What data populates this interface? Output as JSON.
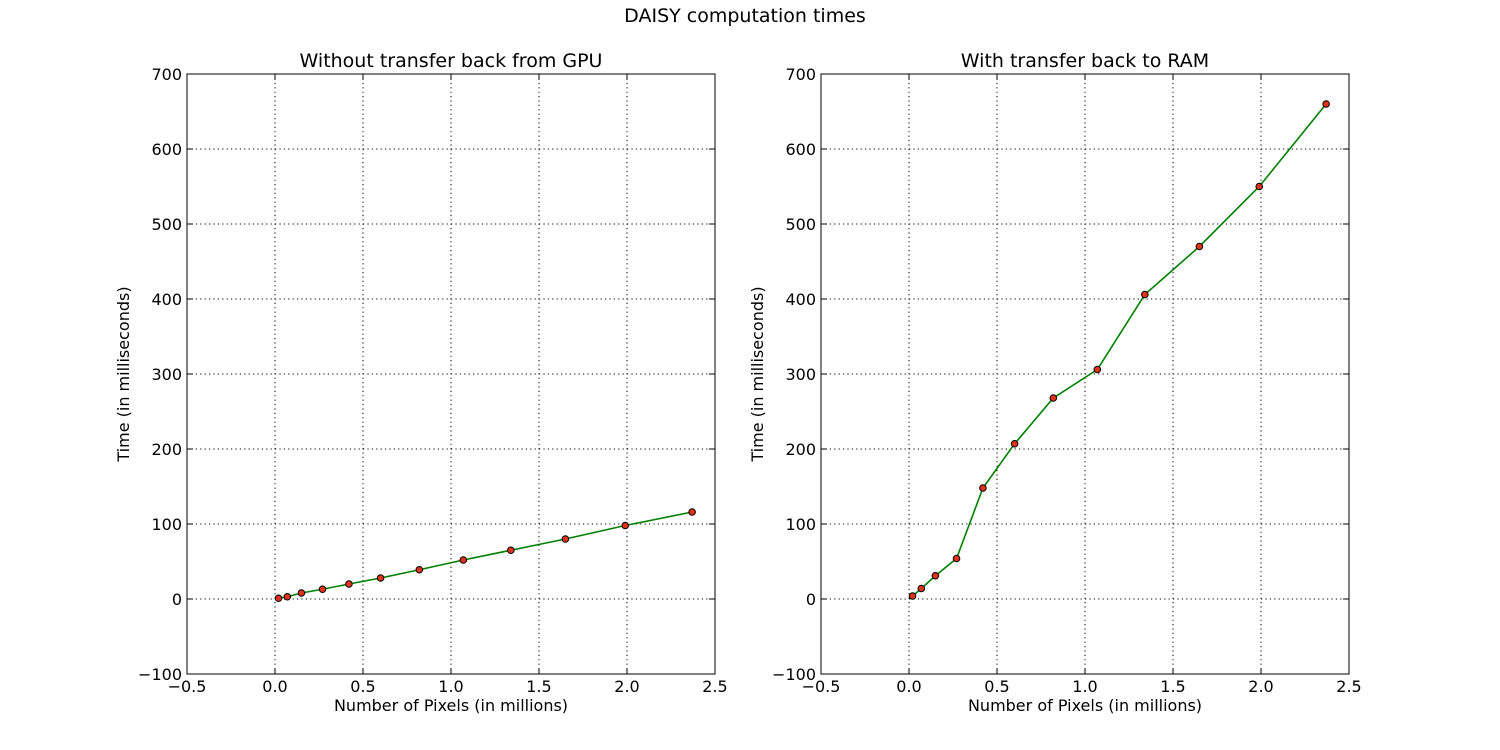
{
  "suptitle": "DAISY computation times",
  "chart_data": [
    {
      "type": "line",
      "title": "Without transfer back from GPU",
      "xlabel": "Number of Pixels (in millions)",
      "ylabel": "Time (in milliseconds)",
      "xlim": [
        -0.5,
        2.5
      ],
      "ylim": [
        -100,
        700
      ],
      "xticks": [
        -0.5,
        0.0,
        0.5,
        1.0,
        1.5,
        2.0,
        2.5
      ],
      "xtick_labels": [
        "−0.5",
        "0.0",
        "0.5",
        "1.0",
        "1.5",
        "2.0",
        "2.5"
      ],
      "yticks": [
        -100,
        0,
        100,
        200,
        300,
        400,
        500,
        600,
        700
      ],
      "ytick_labels": [
        "−100",
        "0",
        "100",
        "200",
        "300",
        "400",
        "500",
        "600",
        "700"
      ],
      "grid": true,
      "line_color": "#008000",
      "marker_color": "#e0321a",
      "x": [
        0.02,
        0.07,
        0.15,
        0.27,
        0.42,
        0.6,
        0.82,
        1.07,
        1.34,
        1.65,
        1.99,
        2.37
      ],
      "y": [
        1,
        3,
        8,
        13,
        20,
        28,
        39,
        52,
        65,
        80,
        98,
        116
      ]
    },
    {
      "type": "line",
      "title": "With transfer back to RAM",
      "xlabel": "Number of Pixels (in millions)",
      "ylabel": "Time (in milliseconds)",
      "xlim": [
        -0.5,
        2.5
      ],
      "ylim": [
        -100,
        700
      ],
      "xticks": [
        -0.5,
        0.0,
        0.5,
        1.0,
        1.5,
        2.0,
        2.5
      ],
      "xtick_labels": [
        "−0.5",
        "0.0",
        "0.5",
        "1.0",
        "1.5",
        "2.0",
        "2.5"
      ],
      "yticks": [
        -100,
        0,
        100,
        200,
        300,
        400,
        500,
        600,
        700
      ],
      "ytick_labels": [
        "−100",
        "0",
        "100",
        "200",
        "300",
        "400",
        "500",
        "600",
        "700"
      ],
      "grid": true,
      "line_color": "#008000",
      "marker_color": "#e0321a",
      "x": [
        0.02,
        0.07,
        0.15,
        0.27,
        0.42,
        0.6,
        0.82,
        1.07,
        1.34,
        1.65,
        1.99,
        2.37
      ],
      "y": [
        4,
        14,
        31,
        54,
        148,
        207,
        268,
        306,
        406,
        470,
        550,
        660
      ]
    }
  ]
}
